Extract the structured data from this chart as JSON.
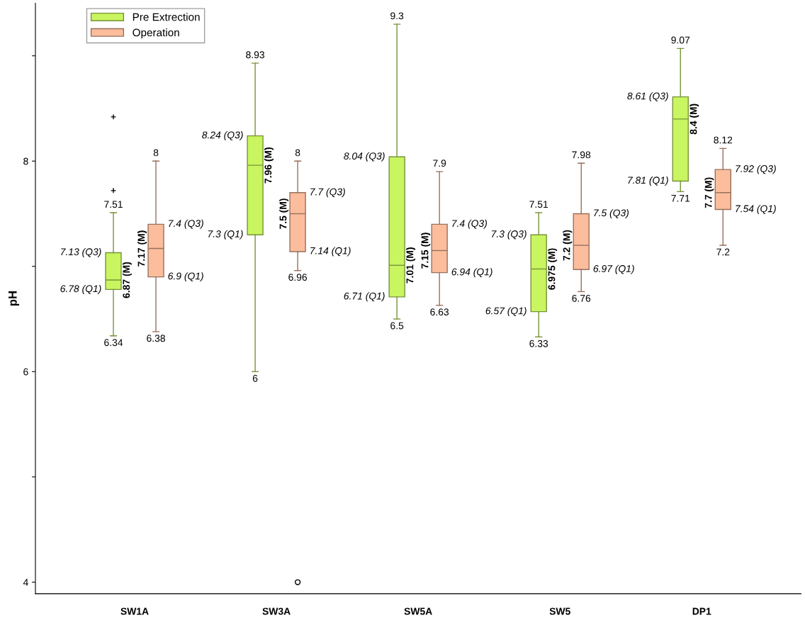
{
  "chart_data": {
    "type": "box",
    "ylabel": "pH",
    "categories": [
      "SW1A",
      "SW3A",
      "SW5A",
      "SW5",
      "DP1"
    ],
    "series": [
      {
        "name": "Pre Extrection",
        "color": "#c8f560",
        "marker": "cross",
        "boxes": [
          {
            "low": 6.34,
            "q1": 6.78,
            "median": 6.87,
            "q3": 7.13,
            "high": 7.51,
            "outliers": [
              8.42,
              7.72
            ]
          },
          {
            "low": 6,
            "q1": 7.3,
            "median": 7.96,
            "q3": 8.24,
            "high": 8.93
          },
          {
            "low": 6.5,
            "q1": 6.71,
            "median": 7.01,
            "q3": 8.04,
            "high": 9.3
          },
          {
            "low": 6.33,
            "q1": 6.57,
            "median": 6.975,
            "q3": 7.3,
            "high": 7.51
          },
          {
            "low": 7.71,
            "q1": 7.81,
            "median": 8.4,
            "q3": 8.61,
            "high": 9.07
          }
        ]
      },
      {
        "name": "Operation",
        "color": "#fbbd9c",
        "marker": "circle",
        "boxes": [
          {
            "low": 6.38,
            "q1": 6.9,
            "median": 7.17,
            "q3": 7.4,
            "high": 8
          },
          {
            "low": 6.96,
            "q1": 7.14,
            "median": 7.5,
            "q3": 7.7,
            "high": 8,
            "outliers": [
              4
            ]
          },
          {
            "low": 6.63,
            "q1": 6.94,
            "median": 7.15,
            "q3": 7.4,
            "high": 7.9
          },
          {
            "low": 6.76,
            "q1": 6.97,
            "median": 7.2,
            "q3": 7.5,
            "high": 7.98
          },
          {
            "low": 7.2,
            "q1": 7.54,
            "median": 7.7,
            "q3": 7.92,
            "high": 8.12
          }
        ]
      }
    ],
    "ylim": [
      3.89,
      9.5
    ],
    "yticks": [
      4,
      {
        "value": 5,
        "label": null
      },
      6,
      {
        "value": 7,
        "label": null
      },
      8,
      {
        "value": 9,
        "label": null
      }
    ],
    "grid": false,
    "legend": "top left",
    "annotations": [
      "7.51",
      "7.13 (Q3)",
      "6.87 (M)",
      "6.78 (Q1)",
      "6.34",
      "8",
      "7.4 (Q3)",
      "7.17 (M)",
      "6.9 (Q1)",
      "6.38",
      "8.93",
      "8.24 (Q3)",
      "7.96 (M)",
      "7.3 (Q1)",
      "6",
      "8",
      "7.7 (Q3)",
      "7.5 (M)",
      "7.14 (Q1)",
      "6.96",
      "9.3",
      "8.04 (Q3)",
      "7.01 (M)",
      "6.71 (Q1)",
      "6.5",
      "7.9",
      "7.4 (Q3)",
      "7.15 (M)",
      "6.94 (Q1)",
      "6.63",
      "7.51",
      "7.3 (Q3)",
      "6.975 (M)",
      "6.57 (Q1)",
      "6.33",
      "7.98",
      "7.5 (Q3)",
      "7.2 (M)",
      "6.97 (Q1)",
      "6.76",
      "9.07",
      "8.61 (Q3)",
      "8.4 (M)",
      "7.81 (Q1)",
      "7.71",
      "8.12",
      "7.92 (Q3)",
      "7.7 (M)",
      "7.54 (Q1)",
      "7.2"
    ]
  }
}
